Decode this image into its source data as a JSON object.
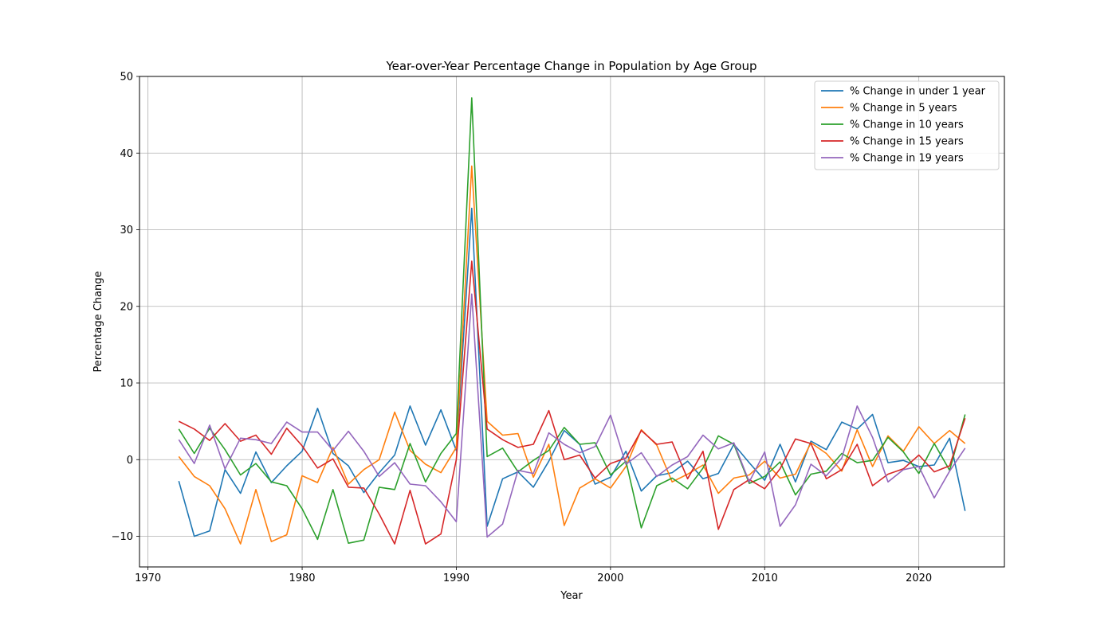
{
  "chart_data": {
    "type": "line",
    "title": "Year-over-Year Percentage Change in Population by Age Group",
    "xlabel": "Year",
    "ylabel": "Percentage Change",
    "xlim": [
      1969.45,
      1975.55
    ],
    "ylim": [
      -14,
      50
    ],
    "xticks": [
      1970,
      1980,
      1990,
      2000,
      2010,
      2020
    ],
    "yticks": [
      -10,
      0,
      10,
      20,
      30,
      40,
      50
    ],
    "grid": true,
    "legend_position": "top-right",
    "x": [
      1972,
      1973,
      1974,
      1975,
      1976,
      1977,
      1978,
      1979,
      1980,
      1981,
      1982,
      1983,
      1984,
      1985,
      1986,
      1987,
      1988,
      1989,
      1990,
      1991,
      1992,
      1993,
      1994,
      1995,
      1996,
      1997,
      1998,
      1999,
      2000,
      2001,
      2002,
      2003,
      2004,
      2005,
      2006,
      2007,
      2008,
      2009,
      2010,
      2011,
      2012,
      2013,
      2014,
      2015,
      2016,
      2017,
      2018,
      2019,
      2020,
      2021,
      2022,
      2023
    ],
    "series": [
      {
        "name": "% Change in under 1 year",
        "color": "#1f77b4",
        "values": [
          -2.8,
          -10,
          -9.3,
          -1.3,
          -4.4,
          1,
          -3,
          -0.8,
          1.1,
          6.7,
          0.8,
          -0.8,
          -4.3,
          -1.7,
          0.6,
          7,
          1.9,
          6.5,
          1.2,
          32.8,
          -8.7,
          -2.5,
          -1.6,
          -3.6,
          -0.2,
          3.8,
          2,
          -3.2,
          -2.3,
          1.1,
          -4.1,
          -2.1,
          -1.7,
          -0.2,
          -2.5,
          -1.8,
          2,
          -0.4,
          -2.7,
          2,
          -2.9,
          2.4,
          1.3,
          4.9,
          4,
          5.9,
          -0.4,
          -0.1,
          -0.9,
          -0.7,
          2.8,
          -6.7
        ]
      },
      {
        "name": "% Change in 5 years",
        "color": "#ff7f0e",
        "values": [
          0.4,
          -2.2,
          -3.4,
          -6.4,
          -11,
          -3.9,
          -10.7,
          -9.8,
          -2.1,
          -3,
          1.6,
          -3.2,
          -1.3,
          0,
          6.2,
          1.2,
          -0.6,
          -1.7,
          1.6,
          38.3,
          5,
          3.2,
          3.4,
          -2.3,
          2,
          -8.6,
          -3.7,
          -2.5,
          -3.7,
          -0.9,
          3.9,
          1.9,
          -2.9,
          -1.9,
          -0.7,
          -4.4,
          -2.4,
          -2,
          -0.2,
          -2.4,
          -1.9,
          2.2,
          0.8,
          -1.5,
          3.9,
          -0.9,
          3.1,
          1.1,
          4.3,
          2.1,
          3.8,
          2.1
        ]
      },
      {
        "name": "% Change in 10 years",
        "color": "#2ca02c",
        "values": [
          4,
          0.8,
          4.1,
          1.3,
          -2,
          -0.5,
          -2.9,
          -3.4,
          -6.4,
          -10.4,
          -3.9,
          -10.9,
          -10.5,
          -3.6,
          -3.9,
          2.1,
          -2.9,
          0.8,
          3.4,
          47.2,
          0.4,
          1.5,
          -1.6,
          -0.1,
          1.2,
          4.2,
          2,
          2.2,
          -2,
          -0.2,
          -8.9,
          -3.4,
          -2.4,
          -3.8,
          -1.1,
          3.1,
          2,
          -3.1,
          -2.2,
          -0.3,
          -4.6,
          -1.9,
          -1.5,
          0.8,
          -0.4,
          -0.1,
          2.9,
          1,
          -1.8,
          2.1,
          -1.4,
          5.9
        ]
      },
      {
        "name": "% Change in 15 years",
        "color": "#d62728",
        "values": [
          5,
          4,
          2.5,
          4.7,
          2.4,
          3.2,
          0.7,
          4.1,
          1.8,
          -1.1,
          0.1,
          -3.6,
          -3.7,
          -7.1,
          -11,
          -4,
          -11,
          -9.7,
          0,
          25.9,
          4,
          2.6,
          1.6,
          2,
          6.4,
          0,
          0.6,
          -2.4,
          -0.5,
          0.2,
          3.8,
          2,
          2.3,
          -2.5,
          1.1,
          -9.1,
          -3.9,
          -2.6,
          -3.8,
          -1.2,
          2.7,
          2.1,
          -2.5,
          -1.3,
          2,
          -3.4,
          -1.9,
          -1.2,
          0.6,
          -1.6,
          -0.8,
          5.4
        ]
      },
      {
        "name": "% Change in 19 years",
        "color": "#9467bd",
        "values": [
          2.6,
          -0.5,
          4.5,
          -1.2,
          2.8,
          2.6,
          2.1,
          4.9,
          3.6,
          3.6,
          1.2,
          3.7,
          1.1,
          -2.2,
          -0.4,
          -3.2,
          -3.4,
          -5.5,
          -8.1,
          21.6,
          -10.1,
          -8.4,
          -1.4,
          -1.8,
          3.5,
          2,
          0.9,
          1.7,
          5.8,
          -0.6,
          0.9,
          -2.2,
          -0.7,
          0.4,
          3.2,
          1.4,
          2.2,
          -2.9,
          1,
          -8.7,
          -5.9,
          -0.6,
          -2.1,
          0.2,
          7,
          2.9,
          -2.9,
          -1.3,
          -0.9,
          -5,
          -1.5,
          1.5
        ]
      }
    ]
  }
}
